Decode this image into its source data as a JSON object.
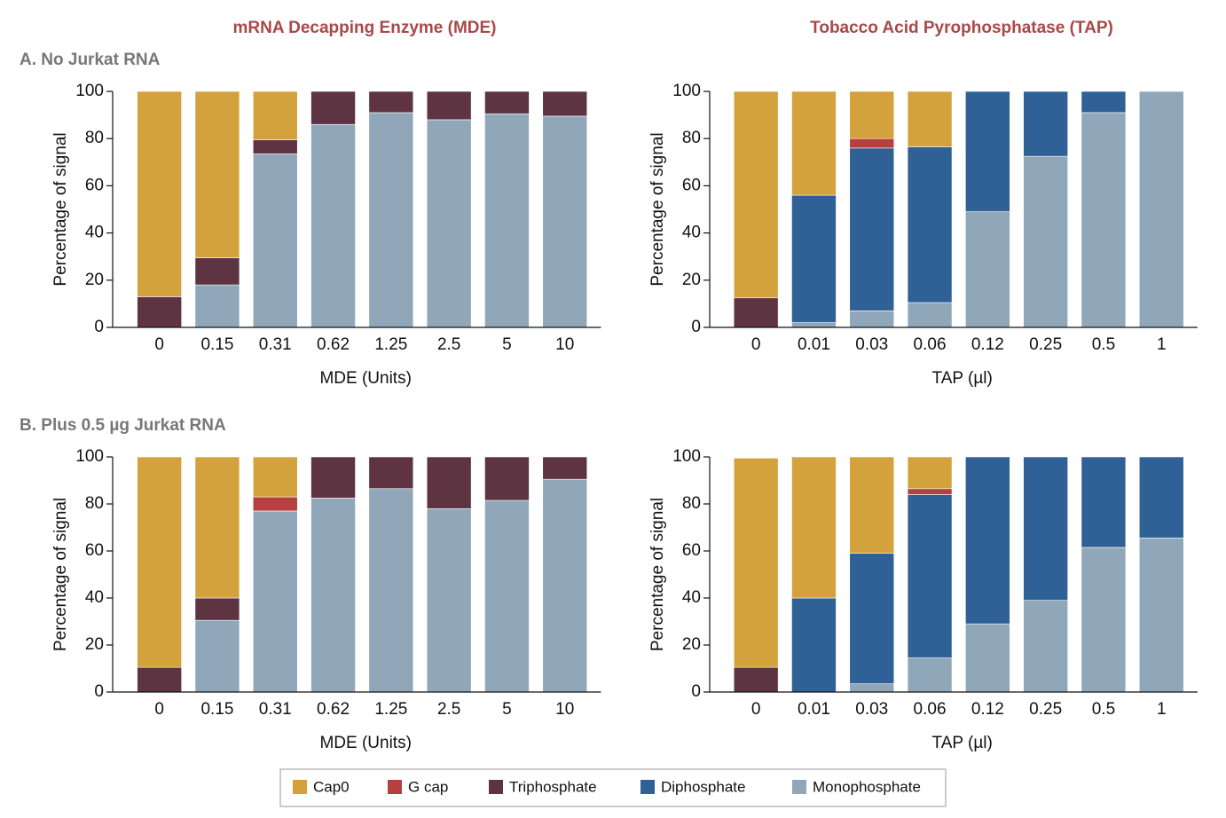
{
  "chart_data": [
    {
      "type": "bar",
      "stacked": true,
      "title": "mRNA Decapping Enzyme (MDE)",
      "subtitle": "A. No Jurkat RNA",
      "xlabel": "MDE (Units)",
      "ylabel": "Percentage of signal",
      "categories": [
        "0",
        "0.15",
        "0.31",
        "0.62",
        "1.25",
        "2.5",
        "5",
        "10"
      ],
      "ylim": [
        0,
        100
      ],
      "yticks": [
        0,
        20,
        40,
        60,
        80,
        100
      ],
      "series": [
        {
          "name": "Cap0",
          "color": "#d4a23c",
          "values": [
            87,
            70.5,
            20.5,
            0,
            0,
            0,
            0,
            0
          ]
        },
        {
          "name": "G cap",
          "color": "#b5403f",
          "values": [
            0,
            0,
            0,
            0,
            0,
            0,
            0,
            0
          ]
        },
        {
          "name": "Triphosphate",
          "color": "#5e3443",
          "values": [
            13,
            11.5,
            6,
            14,
            9,
            12,
            9.5,
            10.5
          ]
        },
        {
          "name": "Diphosphate",
          "color": "#2f6096",
          "values": [
            0,
            0,
            0,
            0,
            0,
            0,
            0,
            0
          ]
        },
        {
          "name": "Monophosphate",
          "color": "#90a7b9",
          "values": [
            0,
            18,
            73.5,
            86,
            91,
            88,
            90.5,
            89.5
          ]
        }
      ]
    },
    {
      "type": "bar",
      "stacked": true,
      "title": "Tobacco Acid Pyrophosphatase (TAP)",
      "xlabel": "TAP (µl)",
      "ylabel": "Percentage of signal",
      "categories": [
        "0",
        "0.01",
        "0.03",
        "0.06",
        "0.12",
        "0.25",
        "0.5",
        "1"
      ],
      "ylim": [
        0,
        100
      ],
      "yticks": [
        0,
        20,
        40,
        60,
        80,
        100
      ],
      "series": [
        {
          "name": "Cap0",
          "color": "#d4a23c",
          "values": [
            87.5,
            44,
            20,
            23.5,
            0,
            0,
            0,
            0
          ]
        },
        {
          "name": "G cap",
          "color": "#b5403f",
          "values": [
            0,
            0,
            4,
            0,
            0,
            0,
            0,
            0
          ]
        },
        {
          "name": "Triphosphate",
          "color": "#5e3443",
          "values": [
            12.5,
            0,
            0,
            0,
            0,
            0,
            0,
            0
          ]
        },
        {
          "name": "Diphosphate",
          "color": "#2f6096",
          "values": [
            0,
            54,
            69,
            66,
            51,
            27.5,
            9,
            0
          ]
        },
        {
          "name": "Monophosphate",
          "color": "#90a7b9",
          "values": [
            0,
            2,
            7,
            10.5,
            49,
            72.5,
            91,
            100
          ]
        }
      ]
    },
    {
      "type": "bar",
      "stacked": true,
      "subtitle": "B. Plus 0.5 µg Jurkat RNA",
      "xlabel": "MDE (Units)",
      "ylabel": "Percentage of signal",
      "categories": [
        "0",
        "0.15",
        "0.31",
        "0.62",
        "1.25",
        "2.5",
        "5",
        "10"
      ],
      "ylim": [
        0,
        100
      ],
      "yticks": [
        0,
        20,
        40,
        60,
        80,
        100
      ],
      "series": [
        {
          "name": "Cap0",
          "color": "#d4a23c",
          "values": [
            89.5,
            60,
            17,
            0,
            0,
            0,
            0,
            0
          ]
        },
        {
          "name": "G cap",
          "color": "#b5403f",
          "values": [
            0,
            0,
            6,
            0,
            0,
            0,
            0,
            0
          ]
        },
        {
          "name": "Triphosphate",
          "color": "#5e3443",
          "values": [
            10.5,
            9.5,
            0,
            17.5,
            13.5,
            22,
            18.5,
            9.5
          ]
        },
        {
          "name": "Diphosphate",
          "color": "#2f6096",
          "values": [
            0,
            0,
            0,
            0,
            0,
            0,
            0,
            0
          ]
        },
        {
          "name": "Monophosphate",
          "color": "#90a7b9",
          "values": [
            0,
            30.5,
            77,
            82.5,
            86.5,
            78,
            81.5,
            90.5
          ]
        }
      ]
    },
    {
      "type": "bar",
      "stacked": true,
      "xlabel": "TAP (µl)",
      "ylabel": "Percentage of signal",
      "categories": [
        "0",
        "0.01",
        "0.03",
        "0.06",
        "0.12",
        "0.25",
        "0.5",
        "1"
      ],
      "ylim": [
        0,
        100
      ],
      "yticks": [
        0,
        20,
        40,
        60,
        80,
        100
      ],
      "series": [
        {
          "name": "Cap0",
          "color": "#d4a23c",
          "values": [
            89,
            60,
            41,
            13.5,
            0,
            0,
            0,
            0
          ]
        },
        {
          "name": "G cap",
          "color": "#b5403f",
          "values": [
            0,
            0,
            0,
            2.5,
            0,
            0,
            0,
            0
          ]
        },
        {
          "name": "Triphosphate",
          "color": "#5e3443",
          "values": [
            10.5,
            0,
            0,
            0,
            0,
            0,
            0,
            0
          ]
        },
        {
          "name": "Diphosphate",
          "color": "#2f6096",
          "values": [
            0,
            40,
            55.5,
            69.5,
            71,
            61,
            38.5,
            34.5
          ]
        },
        {
          "name": "Monophosphate",
          "color": "#90a7b9",
          "values": [
            0,
            0,
            3.5,
            14.5,
            29,
            39,
            61.5,
            65.5
          ]
        }
      ]
    }
  ]
}
